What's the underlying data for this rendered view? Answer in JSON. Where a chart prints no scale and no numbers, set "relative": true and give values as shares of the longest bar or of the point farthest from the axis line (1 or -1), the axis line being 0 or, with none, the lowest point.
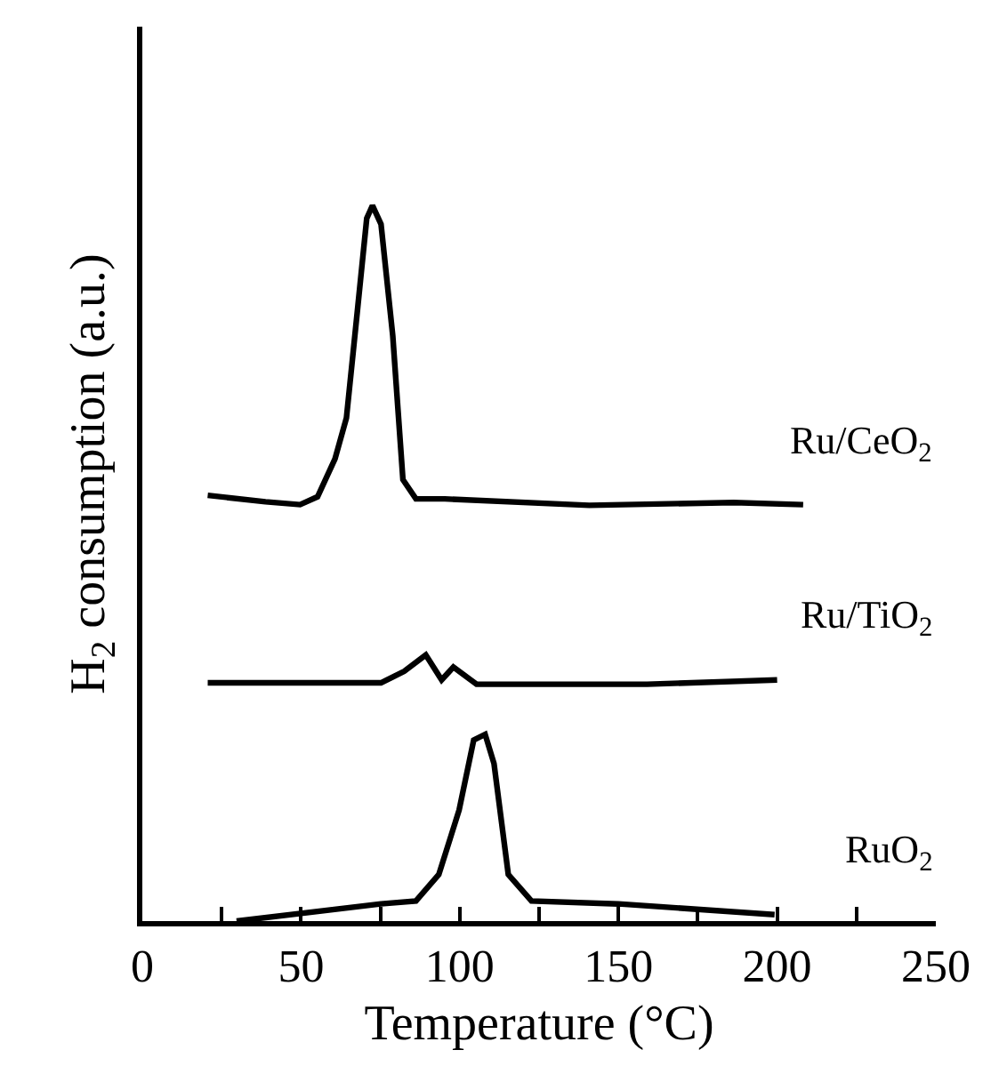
{
  "chart_data": {
    "type": "line",
    "relative": true,
    "xlabel": "Temperature (°C)",
    "ylabel": "H$_{2}$ consumption (a.u.)",
    "xlim": [
      0,
      250
    ],
    "xticks": [
      0,
      {
        "value": 25,
        "label": null
      },
      50,
      {
        "value": 75,
        "label": null
      },
      100,
      {
        "value": 125,
        "label": null
      },
      150,
      {
        "value": 175,
        "label": null
      },
      200,
      {
        "value": 225,
        "label": null
      },
      250
    ],
    "legend": false,
    "marker": "none",
    "line_style": "solid",
    "tick_labels": "x",
    "series": [
      {
        "name": "Ru/CeO$_{2}$",
        "color": "#000000",
        "x": [
          20.6,
          38.8,
          49.7,
          55.2,
          60.7,
          64.3,
          67.9,
          70.7,
          72.5,
          75.2,
          78.9,
          82.1,
          86.2,
          95.3,
          140.8,
          186.3,
          208.2
        ],
        "values": [
          0.595,
          0.586,
          0.582,
          0.593,
          0.646,
          0.703,
          0.859,
          0.982,
          1.0,
          0.974,
          0.818,
          0.617,
          0.59,
          0.59,
          0.581,
          0.585,
          0.582
        ]
      },
      {
        "name": "Ru/TiO$_{2}$",
        "color": "#000000",
        "x": [
          20.6,
          75.2,
          82.5,
          89.3,
          94.3,
          98.0,
          105.3,
          159.0,
          200.0
        ],
        "values": [
          0.333,
          0.333,
          0.349,
          0.372,
          0.337,
          0.355,
          0.331,
          0.331,
          0.337
        ]
      },
      {
        "name": "RuO$_{2}$",
        "color": "#000000",
        "x": [
          29.7,
          75.2,
          86.2,
          93.4,
          99.8,
          104.4,
          108.0,
          110.8,
          115.3,
          122.6,
          150.0,
          199.2
        ],
        "values": [
          0.0,
          0.024,
          0.028,
          0.065,
          0.155,
          0.253,
          0.261,
          0.22,
          0.065,
          0.028,
          0.024,
          0.009
        ]
      }
    ]
  }
}
